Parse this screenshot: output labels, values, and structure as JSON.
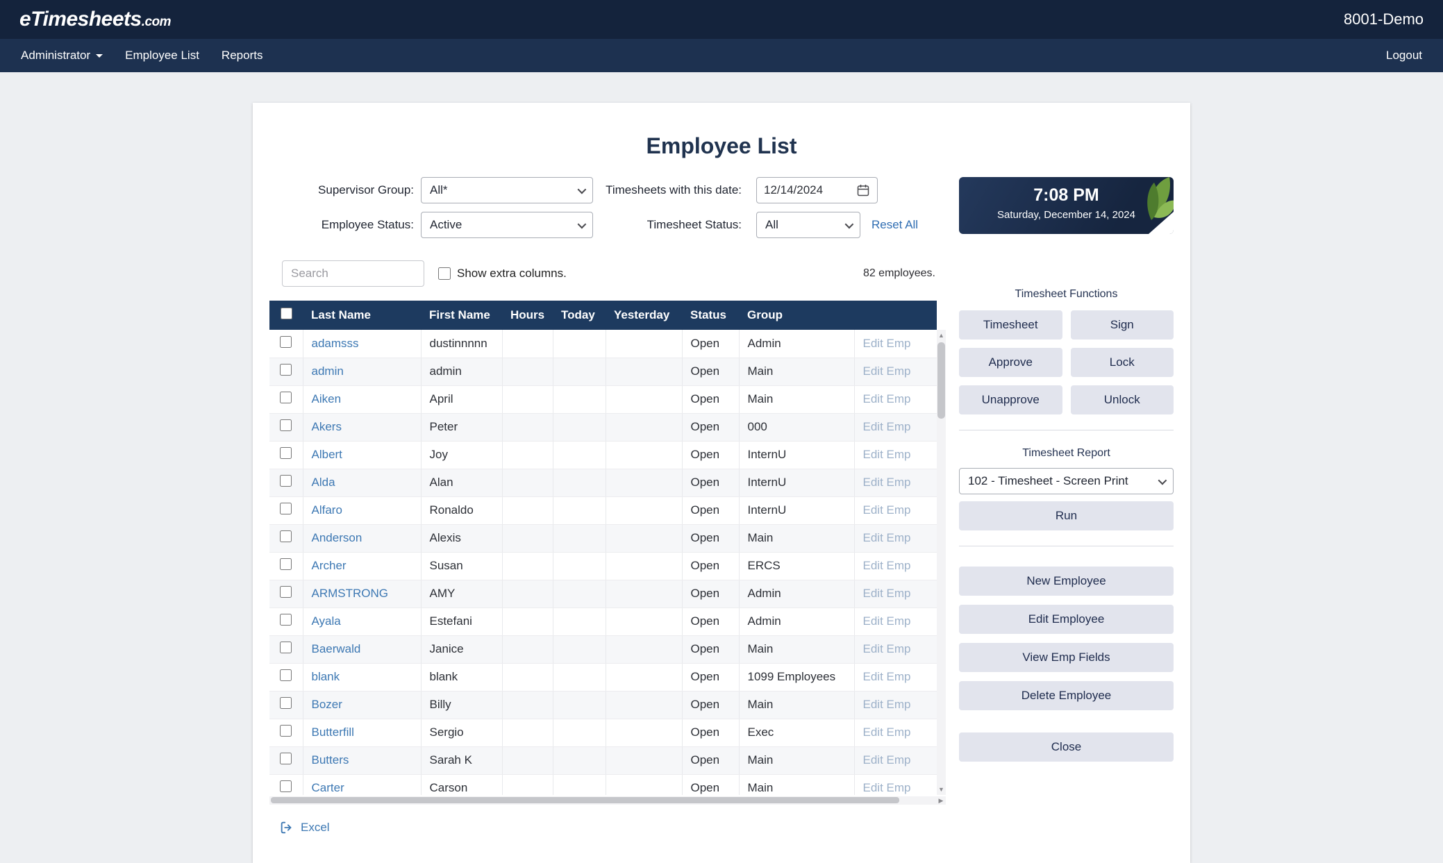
{
  "header": {
    "logo_brand": "eTimesheets",
    "logo_tld": ".com",
    "environment": "8001-Demo"
  },
  "nav": {
    "items": [
      {
        "label": "Administrator",
        "has_dropdown": true
      },
      {
        "label": "Employee List",
        "has_dropdown": false
      },
      {
        "label": "Reports",
        "has_dropdown": false
      }
    ],
    "logout": "Logout"
  },
  "page": {
    "title": "Employee List"
  },
  "filters": {
    "supervisor_group": {
      "label": "Supervisor Group:",
      "value": "All*"
    },
    "employee_status": {
      "label": "Employee Status:",
      "value": "Active"
    },
    "timesheet_date": {
      "label": "Timesheets with this date:",
      "value": "12/14/2024"
    },
    "timesheet_status": {
      "label": "Timesheet Status:",
      "value": "All"
    },
    "reset_all": "Reset All"
  },
  "toolbar": {
    "search_placeholder": "Search",
    "show_extra_columns": "Show extra columns.",
    "employee_count": "82 employees."
  },
  "table": {
    "columns": [
      "Last Name",
      "First Name",
      "Hours",
      "Today",
      "Yesterday",
      "Status",
      "Group"
    ],
    "edit_label": "Edit Emp",
    "rows": [
      {
        "last": "adamsss",
        "first": "dustinnnnn",
        "hours": "",
        "today": "",
        "yesterday": "",
        "status": "Open",
        "group": "Admin"
      },
      {
        "last": "admin",
        "first": "admin",
        "hours": "",
        "today": "",
        "yesterday": "",
        "status": "Open",
        "group": "Main"
      },
      {
        "last": "Aiken",
        "first": "April",
        "hours": "",
        "today": "",
        "yesterday": "",
        "status": "Open",
        "group": "Main"
      },
      {
        "last": "Akers",
        "first": "Peter",
        "hours": "",
        "today": "",
        "yesterday": "",
        "status": "Open",
        "group": "000"
      },
      {
        "last": "Albert",
        "first": "Joy",
        "hours": "",
        "today": "",
        "yesterday": "",
        "status": "Open",
        "group": "InternU"
      },
      {
        "last": "Alda",
        "first": "Alan",
        "hours": "",
        "today": "",
        "yesterday": "",
        "status": "Open",
        "group": "InternU"
      },
      {
        "last": "Alfaro",
        "first": "Ronaldo",
        "hours": "",
        "today": "",
        "yesterday": "",
        "status": "Open",
        "group": "InternU"
      },
      {
        "last": "Anderson",
        "first": "Alexis",
        "hours": "",
        "today": "",
        "yesterday": "",
        "status": "Open",
        "group": "Main"
      },
      {
        "last": "Archer",
        "first": "Susan",
        "hours": "",
        "today": "",
        "yesterday": "",
        "status": "Open",
        "group": "ERCS"
      },
      {
        "last": "ARMSTRONG",
        "first": "AMY",
        "hours": "",
        "today": "",
        "yesterday": "",
        "status": "Open",
        "group": "Admin"
      },
      {
        "last": "Ayala",
        "first": "Estefani",
        "hours": "",
        "today": "",
        "yesterday": "",
        "status": "Open",
        "group": "Admin"
      },
      {
        "last": "Baerwald",
        "first": "Janice",
        "hours": "",
        "today": "",
        "yesterday": "",
        "status": "Open",
        "group": "Main"
      },
      {
        "last": "blank",
        "first": "blank",
        "hours": "",
        "today": "",
        "yesterday": "",
        "status": "Open",
        "group": "1099 Employees"
      },
      {
        "last": "Bozer",
        "first": "Billy",
        "hours": "",
        "today": "",
        "yesterday": "",
        "status": "Open",
        "group": "Main"
      },
      {
        "last": "Butterfill",
        "first": "Sergio",
        "hours": "",
        "today": "",
        "yesterday": "",
        "status": "Open",
        "group": "Exec"
      },
      {
        "last": "Butters",
        "first": "Sarah K",
        "hours": "",
        "today": "",
        "yesterday": "",
        "status": "Open",
        "group": "Main"
      },
      {
        "last": "Carter",
        "first": "Carson",
        "hours": "",
        "today": "",
        "yesterday": "",
        "status": "Open",
        "group": "Main"
      }
    ]
  },
  "footer": {
    "excel_label": "Excel"
  },
  "sidebar": {
    "clock": {
      "time": "7:08 PM",
      "date": "Saturday, December 14, 2024"
    },
    "functions_title": "Timesheet Functions",
    "function_buttons": [
      "Timesheet",
      "Sign",
      "Approve",
      "Lock",
      "Unapprove",
      "Unlock"
    ],
    "report": {
      "label": "Timesheet Report",
      "selected": "102 - Timesheet - Screen Print",
      "run_label": "Run"
    },
    "actions": [
      "New Employee",
      "Edit Employee",
      "View Emp Fields",
      "Delete Employee"
    ],
    "close_label": "Close"
  },
  "colors": {
    "navy_header": "#1d3a5f",
    "link_blue": "#3d78b3",
    "button_gray": "#e2e4ed"
  }
}
